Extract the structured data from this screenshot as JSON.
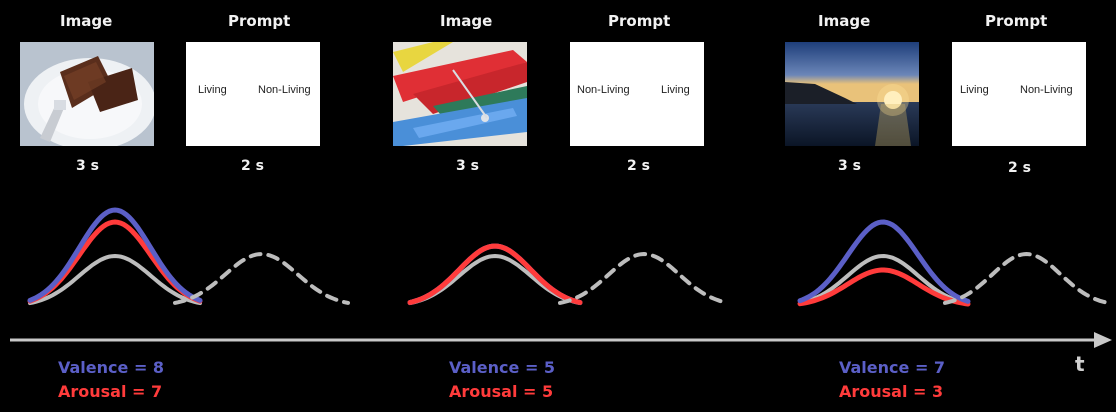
{
  "trials": [
    {
      "image_header": "Image",
      "prompt_header": "Prompt",
      "image_subject": "chocolate cake on plate with fork",
      "prompt_left": "Living",
      "prompt_right": "Non-Living",
      "image_duration": "3 s",
      "prompt_duration": "2 s",
      "valence_label": "Valence = 8",
      "arousal_label": "Arousal = 7",
      "valence": 8,
      "arousal": 7
    },
    {
      "image_header": "Image",
      "prompt_header": "Prompt",
      "image_subject": "colorful clothespins",
      "prompt_left": "Non-Living",
      "prompt_right": "Living",
      "image_duration": "3 s",
      "prompt_duration": "2 s",
      "valence_label": "Valence = 5",
      "arousal_label": "Arousal = 5",
      "valence": 5,
      "arousal": 5
    },
    {
      "image_header": "Image",
      "prompt_header": "Prompt",
      "image_subject": "sunset over sea",
      "prompt_left": "Living",
      "prompt_right": "Non-Living",
      "image_duration": "3 s",
      "prompt_duration": "2 s",
      "valence_label": "Valence = 7",
      "arousal_label": "Arousal = 3",
      "valence": 7,
      "arousal": 3
    }
  ],
  "axis_label": "t",
  "colors": {
    "valence": "#5b5fc7",
    "arousal": "#ff3b3b",
    "baseline": "#bdbdbd",
    "axis": "#c8c8c8"
  }
}
